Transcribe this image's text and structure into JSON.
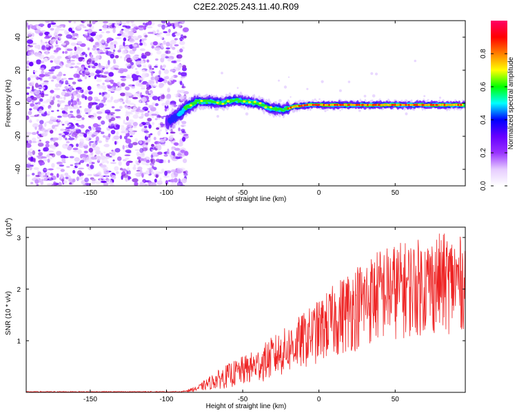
{
  "title": "C2E2.2025.243.11.40.R09",
  "chart_data": [
    {
      "type": "heatmap",
      "panel": "top",
      "xlabel": "Height of straight line (km)",
      "ylabel": "Frequency (Hz)",
      "xlim": [
        -192,
        96
      ],
      "ylim": [
        -50,
        50
      ],
      "xticks": [
        -150,
        -100,
        -50,
        0,
        50
      ],
      "yticks": [
        -40,
        -20,
        0,
        20,
        40
      ],
      "xtick_labels": [
        "-150",
        "-100",
        "-50",
        "0",
        "50"
      ],
      "ytick_labels": [
        "-40",
        "-20",
        "0",
        "20",
        "40"
      ],
      "noise_region_x": [
        -192,
        -87
      ],
      "signal_track": {
        "x": [
          -100,
          -92,
          -88,
          -80,
          -72,
          -64,
          -56,
          -48,
          -40,
          -32,
          -24,
          -16,
          -8,
          0,
          20,
          40,
          60,
          80,
          96
        ],
        "freq": [
          -12,
          -7,
          -3,
          1,
          1,
          0,
          2,
          1,
          0,
          -3,
          -4,
          -2,
          -1,
          -1,
          -1,
          -1,
          -1,
          -1,
          -1
        ]
      },
      "colorbar": {
        "label": "Normalized spectral amplitude",
        "range": [
          0,
          1
        ],
        "ticks": [
          0.0,
          0.2,
          0.4,
          0.6,
          0.8
        ],
        "tick_labels": [
          "0.0",
          "0.2",
          "0.4",
          "0.6",
          "0.8"
        ],
        "colors": [
          "#ffffff",
          "#e6ccff",
          "#9933ff",
          "#6600ff",
          "#0000ff",
          "#00ffff",
          "#00ff00",
          "#ffff00",
          "#ff8000",
          "#ff0000",
          "#ff0066"
        ]
      }
    },
    {
      "type": "line",
      "panel": "bottom",
      "xlabel": "Height of straight line (km)",
      "ylabel": "SNR (10 * v/v)",
      "y_scale_label": "(x10",
      "y_scale_exp": "4",
      "y_scale_close": ")",
      "xlim": [
        -192,
        96
      ],
      "ylim": [
        0,
        3.2
      ],
      "xticks": [
        -150,
        -100,
        -50,
        0,
        50
      ],
      "yticks": [
        1,
        2,
        3
      ],
      "xtick_labels": [
        "-150",
        "-100",
        "-50",
        "0",
        "50"
      ],
      "ytick_labels": [
        "1",
        "2",
        "3"
      ],
      "color": "#ee2222",
      "envelope": {
        "x": [
          -192,
          -90,
          -80,
          -70,
          -60,
          -50,
          -40,
          -30,
          -20,
          -10,
          0,
          10,
          20,
          30,
          40,
          50,
          60,
          70,
          80,
          90,
          96
        ],
        "low": [
          0.0,
          0.0,
          0.02,
          0.05,
          0.08,
          0.12,
          0.18,
          0.25,
          0.35,
          0.45,
          0.55,
          0.65,
          0.75,
          0.85,
          0.95,
          1.0,
          1.05,
          1.1,
          1.1,
          1.15,
          1.2
        ],
        "high": [
          0.02,
          0.02,
          0.12,
          0.35,
          0.55,
          0.7,
          0.85,
          1.1,
          1.3,
          1.55,
          1.8,
          2.1,
          2.4,
          2.6,
          2.8,
          2.9,
          2.95,
          3.0,
          3.1,
          3.05,
          3.0
        ]
      }
    }
  ]
}
